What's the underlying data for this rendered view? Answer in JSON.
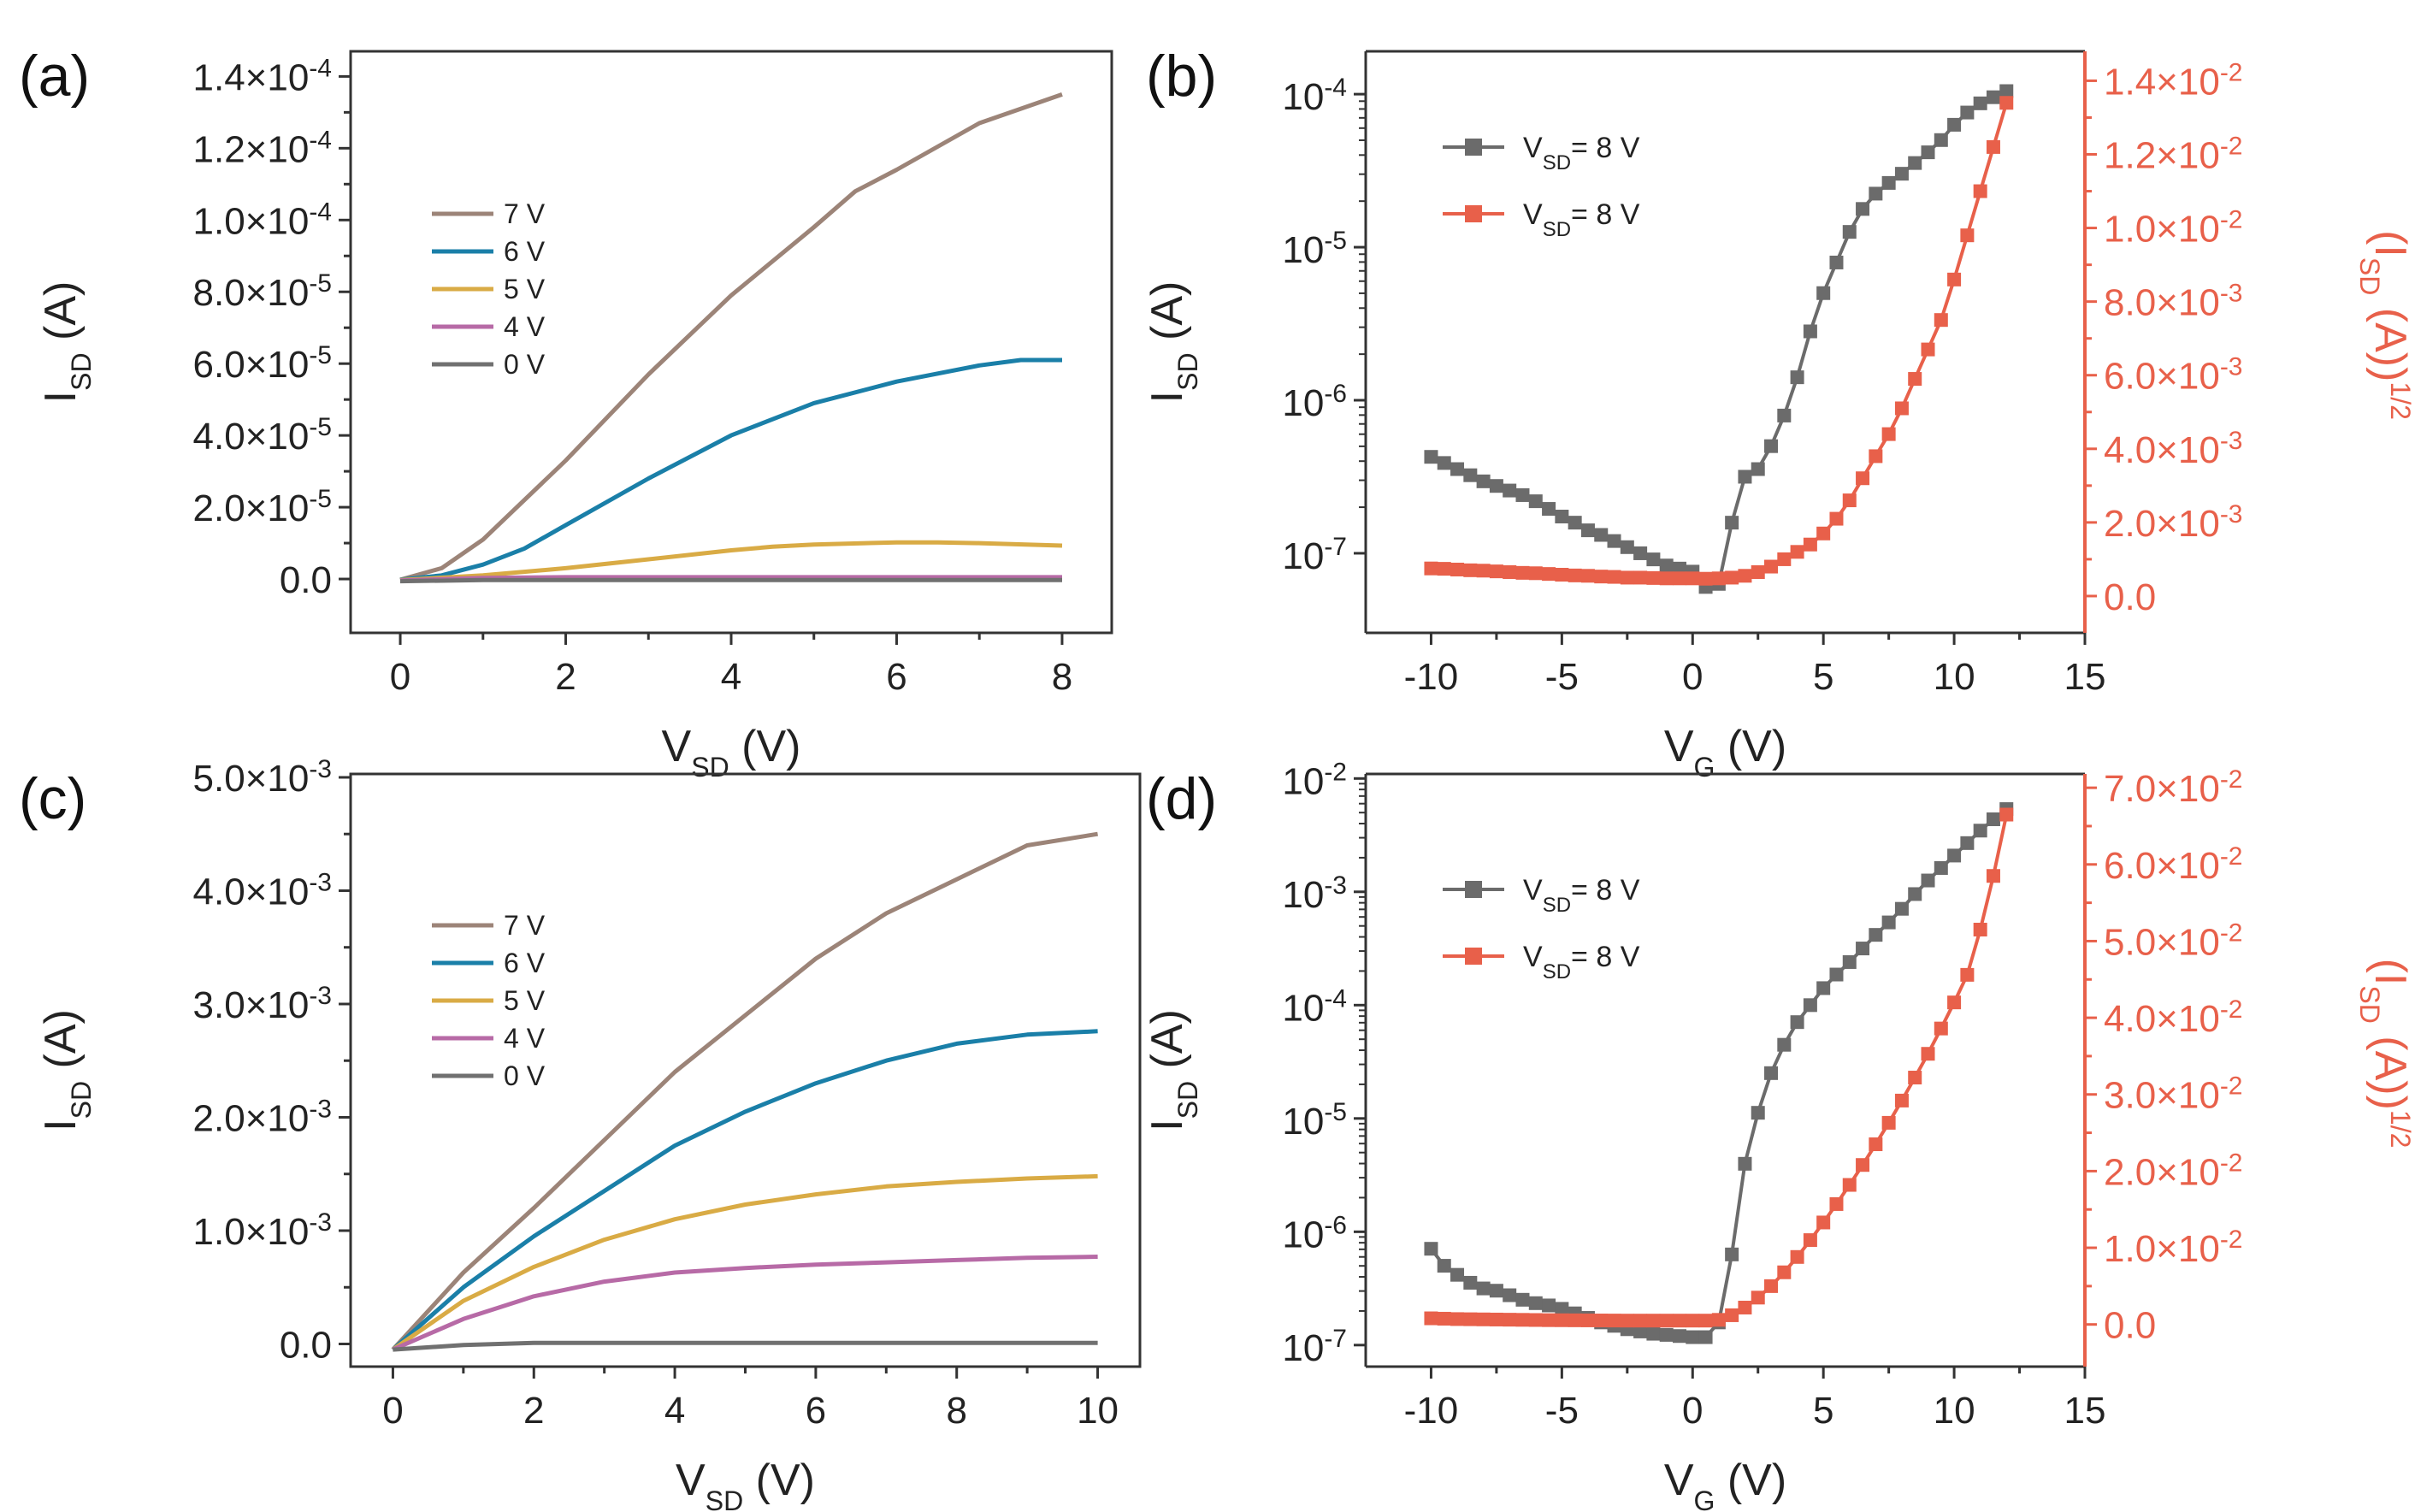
{
  "chart_data": [
    {
      "panel": "(a)",
      "type": "line",
      "xlabel_main": "V",
      "xlabel_sub": "SD",
      "xlabel_tail": " (V)",
      "ylabel_main": "I",
      "ylabel_sub": "SD",
      "ylabel_tail": " (A)",
      "xlim": [
        -0.6,
        8.6
      ],
      "ylim": [
        -1.5e-05,
        0.000147
      ],
      "xticks": [
        0,
        2,
        4,
        6,
        8
      ],
      "ytick_values": [
        0,
        2e-05,
        4e-05,
        6e-05,
        8e-05,
        0.0001,
        0.00012,
        0.00014
      ],
      "ytick_labels": [
        {
          "m": "0.0",
          "e": ""
        },
        {
          "m": "2.0×10",
          "e": "-5"
        },
        {
          "m": "4.0×10",
          "e": "-5"
        },
        {
          "m": "6.0×10",
          "e": "-5"
        },
        {
          "m": "8.0×10",
          "e": "-5"
        },
        {
          "m": "1.0×10",
          "e": "-4"
        },
        {
          "m": "1.2×10",
          "e": "-4"
        },
        {
          "m": "1.4×10",
          "e": "-4"
        }
      ],
      "legend_title": "",
      "series": [
        {
          "name": "7 V",
          "color": "#9c8478",
          "x": [
            0,
            0.5,
            1,
            2,
            3,
            4,
            5,
            5.5,
            6,
            7,
            8
          ],
          "y": [
            -2e-07,
            3e-06,
            1.1e-05,
            3.3e-05,
            5.7e-05,
            7.9e-05,
            9.8e-05,
            0.000108,
            0.000114,
            0.000127,
            0.000135
          ]
        },
        {
          "name": "6 V",
          "color": "#1a7fa8",
          "x": [
            0,
            0.5,
            1,
            1.5,
            2,
            3,
            4,
            5,
            6,
            7,
            7.5,
            8
          ],
          "y": [
            -2e-07,
            1e-06,
            4e-06,
            8.5e-06,
            1.5e-05,
            2.8e-05,
            4e-05,
            4.9e-05,
            5.5e-05,
            5.95e-05,
            6.1e-05,
            6.1e-05
          ]
        },
        {
          "name": "5 V",
          "color": "#d9ab45",
          "x": [
            0,
            1,
            2,
            3,
            4,
            4.5,
            5,
            6,
            6.5,
            7,
            8
          ],
          "y": [
            -3e-07,
            1e-06,
            3e-06,
            5.5e-06,
            8e-06,
            9e-06,
            9.6e-06,
            1.02e-05,
            1.02e-05,
            1e-05,
            9.3e-06
          ]
        },
        {
          "name": "4 V",
          "color": "#b76aa6",
          "x": [
            0,
            1,
            2,
            4,
            6,
            8
          ],
          "y": [
            -4e-07,
            3e-07,
            5e-07,
            5e-07,
            5e-07,
            5e-07
          ]
        },
        {
          "name": "0 V",
          "color": "#707070",
          "x": [
            0,
            1,
            2,
            4,
            6,
            8
          ],
          "y": [
            -6e-07,
            -3e-07,
            -3e-07,
            -3e-07,
            -3e-07,
            -3e-07
          ]
        }
      ]
    },
    {
      "panel": "(b)",
      "type": "line",
      "xlabel_main": "V",
      "xlabel_sub": "G",
      "xlabel_tail": " (V)",
      "ylabel_main": "I",
      "ylabel_sub": "SD",
      "ylabel_tail": " (A)",
      "y2label_main": "(I",
      "y2label_sub": "SD",
      "y2label_tail": " (A))",
      "y2label_sup": "1/2",
      "xlim": [
        -12.5,
        15
      ],
      "xticks": [
        -10,
        -5,
        0,
        5,
        10,
        15
      ],
      "ylog_lim": [
        -7.52,
        -3.72
      ],
      "ylog_ticks": [
        -7,
        -6,
        -5,
        -4
      ],
      "y2lim": [
        -0.001,
        0.0148
      ],
      "y2tick_values": [
        0,
        0.002,
        0.004,
        0.006,
        0.008,
        0.01,
        0.012,
        0.014
      ],
      "y2tick_labels": [
        {
          "m": "0.0",
          "e": ""
        },
        {
          "m": "2.0×10",
          "e": "-3"
        },
        {
          "m": "4.0×10",
          "e": "-3"
        },
        {
          "m": "6.0×10",
          "e": "-3"
        },
        {
          "m": "8.0×10",
          "e": "-3"
        },
        {
          "m": "1.0×10",
          "e": "-2"
        },
        {
          "m": "1.2×10",
          "e": "-2"
        },
        {
          "m": "1.4×10",
          "e": "-2"
        }
      ],
      "legend": [
        {
          "main": "V",
          "sub": "SD",
          "tail": "= 8 V",
          "color": "#6b6b6b"
        },
        {
          "main": "V",
          "sub": "SD",
          "tail": "= 8 V",
          "color": "#e8604a"
        }
      ],
      "series": [
        {
          "name": "log I_SD",
          "color": "#6b6b6b",
          "axis": "left-log",
          "x": [
            -10,
            -9.5,
            -9,
            -8.5,
            -8,
            -7.5,
            -7,
            -6.5,
            -6,
            -5.5,
            -5,
            -4.5,
            -4,
            -3.5,
            -3,
            -2.5,
            -2,
            -1.5,
            -1,
            -0.5,
            0,
            0.5,
            1,
            1.5,
            2,
            2.5,
            3,
            3.5,
            4,
            4.5,
            5,
            5.5,
            6,
            6.5,
            7,
            7.5,
            8,
            8.5,
            9,
            9.5,
            10,
            10.5,
            11,
            11.5,
            12
          ],
          "y": [
            -6.37,
            -6.41,
            -6.45,
            -6.49,
            -6.53,
            -6.56,
            -6.59,
            -6.62,
            -6.66,
            -6.71,
            -6.76,
            -6.8,
            -6.85,
            -6.88,
            -6.92,
            -6.96,
            -7.0,
            -7.04,
            -7.08,
            -7.1,
            -7.12,
            -7.22,
            -7.2,
            -6.8,
            -6.5,
            -6.45,
            -6.3,
            -6.1,
            -5.85,
            -5.55,
            -5.3,
            -5.1,
            -4.9,
            -4.75,
            -4.65,
            -4.58,
            -4.52,
            -4.45,
            -4.38,
            -4.3,
            -4.2,
            -4.12,
            -4.06,
            -4.02,
            -3.98
          ]
        },
        {
          "name": "sqrt I_SD",
          "color": "#e8604a",
          "axis": "right",
          "x": [
            -10,
            -9.5,
            -9,
            -8.5,
            -8,
            -7.5,
            -7,
            -6.5,
            -6,
            -5.5,
            -5,
            -4.5,
            -4,
            -3.5,
            -3,
            -2.5,
            -2,
            -1.5,
            -1,
            -0.5,
            0,
            0.5,
            1,
            1.5,
            2,
            2.5,
            3,
            3.5,
            4,
            4.5,
            5,
            5.5,
            6,
            6.5,
            7,
            7.5,
            8,
            8.5,
            9,
            9.5,
            10,
            10.5,
            11,
            11.5,
            12
          ],
          "y": [
            0.00075,
            0.00074,
            0.00072,
            0.0007,
            0.00069,
            0.00067,
            0.00065,
            0.00063,
            0.00062,
            0.0006,
            0.00058,
            0.00056,
            0.00055,
            0.00053,
            0.00052,
            0.0005,
            0.0005,
            0.00049,
            0.00048,
            0.00048,
            0.00048,
            0.00047,
            0.00048,
            0.0005,
            0.00055,
            0.00065,
            0.0008,
            0.001,
            0.0012,
            0.0014,
            0.0017,
            0.0021,
            0.0026,
            0.0032,
            0.0038,
            0.0044,
            0.0051,
            0.0059,
            0.0067,
            0.0075,
            0.0086,
            0.0098,
            0.011,
            0.0122,
            0.0134
          ]
        }
      ]
    },
    {
      "panel": "(c)",
      "type": "line",
      "xlabel_main": "V",
      "xlabel_sub": "SD",
      "xlabel_tail": " (V)",
      "ylabel_main": "I",
      "ylabel_sub": "SD",
      "ylabel_tail": " (A)",
      "xlim": [
        -0.6,
        10.6
      ],
      "ylim": [
        -0.0002,
        0.00503
      ],
      "xticks": [
        0,
        2,
        4,
        6,
        8,
        10
      ],
      "ytick_values": [
        0,
        0.001,
        0.002,
        0.003,
        0.004,
        0.005
      ],
      "ytick_labels": [
        {
          "m": "0.0",
          "e": ""
        },
        {
          "m": "1.0×10",
          "e": "-3"
        },
        {
          "m": "2.0×10",
          "e": "-3"
        },
        {
          "m": "3.0×10",
          "e": "-3"
        },
        {
          "m": "4.0×10",
          "e": "-3"
        },
        {
          "m": "5.0×10",
          "e": "-3"
        }
      ],
      "series": [
        {
          "name": "7 V",
          "color": "#9c8478",
          "x": [
            0,
            1,
            2,
            3,
            4,
            5,
            6,
            7,
            8,
            9,
            10
          ],
          "y": [
            -5e-05,
            0.00063,
            0.0012,
            0.0018,
            0.0024,
            0.0029,
            0.0034,
            0.0038,
            0.0041,
            0.0044,
            0.0045
          ]
        },
        {
          "name": "6 V",
          "color": "#1a7fa8",
          "x": [
            0,
            1,
            2,
            3,
            4,
            5,
            6,
            7,
            8,
            9,
            10
          ],
          "y": [
            -5e-05,
            0.0005,
            0.00095,
            0.00135,
            0.00175,
            0.00205,
            0.0023,
            0.0025,
            0.00265,
            0.00273,
            0.00276
          ]
        },
        {
          "name": "5 V",
          "color": "#d9ab45",
          "x": [
            0,
            1,
            2,
            3,
            4,
            5,
            6,
            7,
            8,
            9,
            10
          ],
          "y": [
            -5e-05,
            0.00038,
            0.00068,
            0.00092,
            0.0011,
            0.00123,
            0.00132,
            0.00139,
            0.00143,
            0.00146,
            0.00148
          ]
        },
        {
          "name": "4 V",
          "color": "#b76aa6",
          "x": [
            0,
            1,
            2,
            3,
            4,
            5,
            6,
            7,
            8,
            9,
            10
          ],
          "y": [
            -5e-05,
            0.00022,
            0.00042,
            0.00055,
            0.00063,
            0.00067,
            0.0007,
            0.00072,
            0.00074,
            0.00076,
            0.00077
          ]
        },
        {
          "name": "0 V",
          "color": "#707070",
          "x": [
            0,
            1,
            2,
            4,
            6,
            8,
            10
          ],
          "y": [
            -5e-05,
            -1e-05,
            1e-05,
            1e-05,
            1e-05,
            1e-05,
            1e-05
          ]
        }
      ]
    },
    {
      "panel": "(d)",
      "type": "line",
      "xlabel_main": "V",
      "xlabel_sub": "G",
      "xlabel_tail": " (V)",
      "ylabel_main": "I",
      "ylabel_sub": "SD",
      "ylabel_tail": " (A)",
      "y2label_main": "(I",
      "y2label_sub": "SD",
      "y2label_tail": " (A))",
      "y2label_sup": "1/2",
      "xlim": [
        -12.5,
        15
      ],
      "xticks": [
        -10,
        -5,
        0,
        5,
        10,
        15
      ],
      "ylog_lim": [
        -7.19,
        -1.96
      ],
      "ylog_ticks": [
        -7,
        -6,
        -5,
        -4,
        -3,
        -2
      ],
      "y2lim": [
        -0.0055,
        0.0718
      ],
      "y2tick_values": [
        0,
        0.01,
        0.02,
        0.03,
        0.04,
        0.05,
        0.06,
        0.07
      ],
      "y2tick_labels": [
        {
          "m": "0.0",
          "e": ""
        },
        {
          "m": "1.0×10",
          "e": "-2"
        },
        {
          "m": "2.0×10",
          "e": "-2"
        },
        {
          "m": "3.0×10",
          "e": "-2"
        },
        {
          "m": "4.0×10",
          "e": "-2"
        },
        {
          "m": "5.0×10",
          "e": "-2"
        },
        {
          "m": "6.0×10",
          "e": "-2"
        },
        {
          "m": "7.0×10",
          "e": "-2"
        }
      ],
      "legend": [
        {
          "main": "V",
          "sub": "SD",
          "tail": "= 8 V",
          "color": "#6b6b6b"
        },
        {
          "main": "V",
          "sub": "SD",
          "tail": "= 8 V",
          "color": "#e8604a"
        }
      ],
      "series": [
        {
          "name": "log I_SD",
          "color": "#6b6b6b",
          "axis": "left-log",
          "x": [
            -10,
            -9.5,
            -9,
            -8.5,
            -8,
            -7.5,
            -7,
            -6.5,
            -6,
            -5.5,
            -5,
            -4.5,
            -4,
            -3.5,
            -3,
            -2.5,
            -2,
            -1.5,
            -1,
            -0.5,
            0,
            0.5,
            1,
            1.5,
            2,
            2.5,
            3,
            3.5,
            4,
            4.5,
            5,
            5.5,
            6,
            6.5,
            7,
            7.5,
            8,
            8.5,
            9,
            9.5,
            10,
            10.5,
            11,
            11.5,
            12
          ],
          "y": [
            -6.15,
            -6.3,
            -6.38,
            -6.45,
            -6.5,
            -6.52,
            -6.56,
            -6.6,
            -6.63,
            -6.65,
            -6.68,
            -6.72,
            -6.76,
            -6.8,
            -6.83,
            -6.86,
            -6.88,
            -6.9,
            -6.91,
            -6.92,
            -6.93,
            -6.93,
            -6.8,
            -6.2,
            -5.4,
            -4.95,
            -4.6,
            -4.35,
            -4.15,
            -4.0,
            -3.85,
            -3.73,
            -3.62,
            -3.5,
            -3.38,
            -3.27,
            -3.15,
            -3.02,
            -2.9,
            -2.79,
            -2.68,
            -2.57,
            -2.46,
            -2.36,
            -2.27
          ]
        },
        {
          "name": "sqrt I_SD",
          "color": "#e8604a",
          "axis": "right",
          "x": [
            -10,
            -9.5,
            -9,
            -8.5,
            -8,
            -7.5,
            -7,
            -6.5,
            -6,
            -5.5,
            -5,
            -4.5,
            -4,
            -3.5,
            -3,
            -2.5,
            -2,
            -1.5,
            -1,
            -0.5,
            0,
            0.5,
            1,
            1.5,
            2,
            2.5,
            3,
            3.5,
            4,
            4.5,
            5,
            5.5,
            6,
            6.5,
            7,
            7.5,
            8,
            8.5,
            9,
            9.5,
            10,
            10.5,
            11,
            11.5,
            12
          ],
          "y": [
            0.0008,
            0.00075,
            0.0007,
            0.00068,
            0.00066,
            0.00064,
            0.00062,
            0.0006,
            0.00058,
            0.00056,
            0.00055,
            0.00054,
            0.00053,
            0.00052,
            0.00051,
            0.0005,
            0.0005,
            0.0005,
            0.0005,
            0.0005,
            0.0005,
            0.0005,
            0.0006,
            0.0012,
            0.0022,
            0.0035,
            0.005,
            0.0068,
            0.0088,
            0.011,
            0.0133,
            0.0157,
            0.0182,
            0.0208,
            0.0235,
            0.0263,
            0.0292,
            0.0322,
            0.0353,
            0.0386,
            0.042,
            0.0456,
            0.0515,
            0.0585,
            0.0665
          ]
        }
      ]
    }
  ]
}
